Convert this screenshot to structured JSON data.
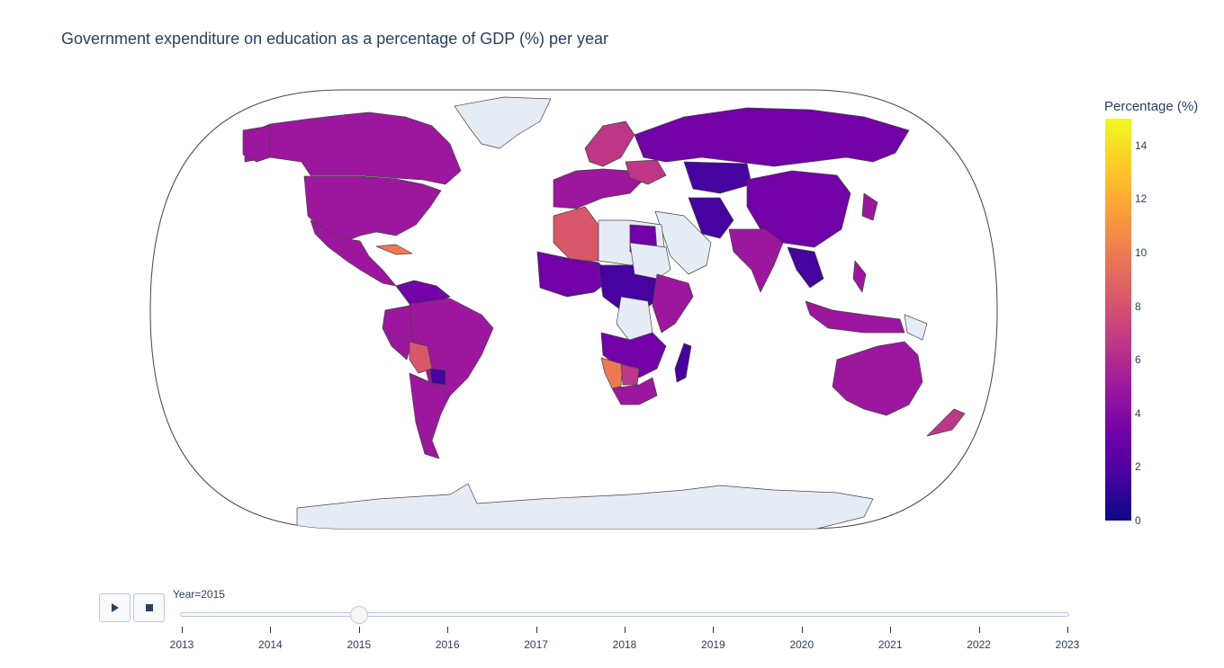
{
  "title": "Government expenditure on education as a percentage of GDP (%) per year",
  "colorbar": {
    "title": "Percentage (%)",
    "ticks": [
      "0",
      "2",
      "4",
      "6",
      "8",
      "10",
      "12",
      "14"
    ],
    "range": [
      0,
      15
    ],
    "colorscale": [
      "#0d0887",
      "#46039f",
      "#7201a8",
      "#9c179e",
      "#bd3786",
      "#d8576b",
      "#ed7953",
      "#fb9f3a",
      "#fdca26",
      "#f0f921"
    ]
  },
  "colors": {
    "no_data": "#e5ecf6",
    "border": "#444444"
  },
  "slider": {
    "current_label": "Year=2015",
    "current_index": 2,
    "years": [
      "2013",
      "2014",
      "2015",
      "2016",
      "2017",
      "2018",
      "2019",
      "2020",
      "2021",
      "2022",
      "2023"
    ]
  },
  "controls": {
    "play_icon": "play-icon",
    "stop_icon": "stop-icon"
  }
}
